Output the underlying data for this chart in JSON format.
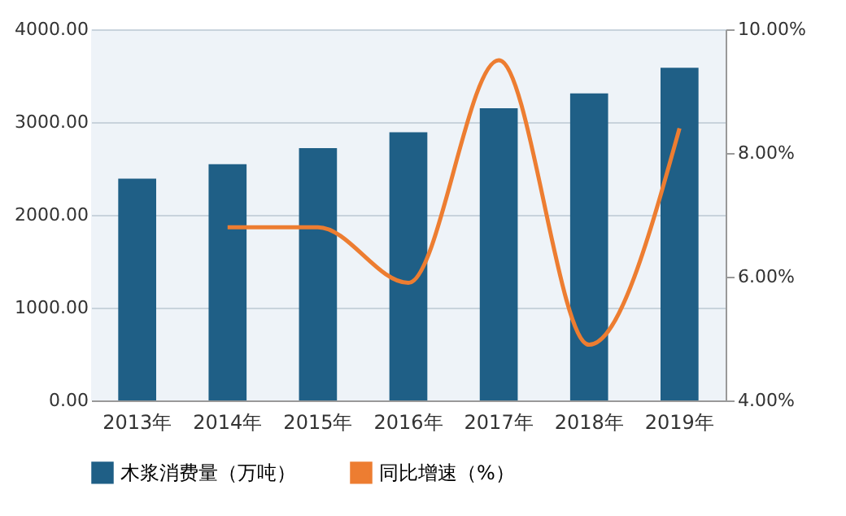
{
  "chart_data": {
    "type": "bar",
    "categories": [
      "2013年",
      "2014年",
      "2015年",
      "2016年",
      "2017年",
      "2018年",
      "2019年"
    ],
    "series": [
      {
        "name": "木浆消费量（万吨）",
        "color": "#1f5f86",
        "values": [
          2390,
          2545,
          2720,
          2890,
          3150,
          3310,
          3585
        ]
      },
      {
        "name": "同比增速（%）",
        "type": "line",
        "axis": "y2",
        "color": "#ed7d31",
        "values": [
          null,
          6.8,
          6.8,
          5.9,
          9.5,
          4.9,
          8.4
        ]
      }
    ],
    "ylim": [
      0,
      4000
    ],
    "yticks": [
      {
        "value": 0,
        "label": "0.00"
      },
      {
        "value": 1000,
        "label": "1000.00"
      },
      {
        "value": 2000,
        "label": "2000.00"
      },
      {
        "value": 3000,
        "label": "3000.00"
      },
      {
        "value": 4000,
        "label": "4000.00"
      }
    ],
    "y2lim": [
      4,
      10
    ],
    "y2ticks": [
      {
        "value": 4,
        "label": "4.00%"
      },
      {
        "value": 6,
        "label": "6.00%"
      },
      {
        "value": 8,
        "label": "8.00%"
      },
      {
        "value": 10,
        "label": "10.00%"
      }
    ],
    "grid": "y",
    "legend": "bottom",
    "marker": "none",
    "line_style": "solid"
  }
}
